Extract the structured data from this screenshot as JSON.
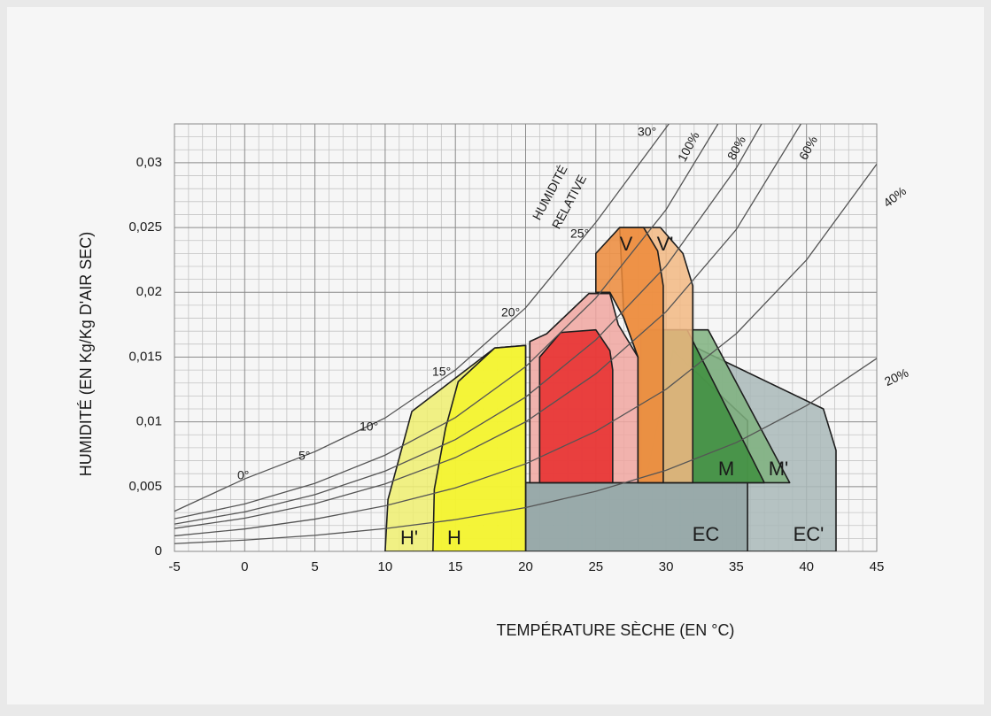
{
  "chart_data": {
    "type": "line",
    "x_label": "TEMPÉRATURE SÈCHE (EN °C)",
    "y_label": "HUMIDITÉ (EN Kg/Kg D'AIR SEC)",
    "annotation": [
      "HUMIDITÉ",
      "RELATIVE"
    ],
    "xlim": [
      -5,
      45
    ],
    "ylim": [
      0,
      0.033
    ],
    "xticks": [
      -5,
      0,
      5,
      10,
      15,
      20,
      25,
      30,
      35,
      40,
      45
    ],
    "yticks": [
      0,
      {
        "value": 0.005,
        "label": "0,005"
      },
      {
        "value": 0.01,
        "label": "0,01"
      },
      {
        "value": 0.015,
        "label": "0,015"
      },
      {
        "value": 0.02,
        "label": "0,02"
      },
      {
        "value": 0.025,
        "label": "0,025"
      },
      {
        "value": 0.03,
        "label": "0,03"
      }
    ],
    "grid": true,
    "curve_color": "#555555",
    "curves": [
      {
        "labels": [
          "0°",
          "5°",
          "10°",
          "15°",
          "20°",
          "25°",
          "30°"
        ],
        "x": [
          -5,
          0,
          5,
          10,
          15,
          20,
          25,
          30.2
        ],
        "values": [
          0.0031,
          0.0056,
          0.0077,
          0.0103,
          0.014,
          0.0188,
          0.0254,
          0.033
        ]
      },
      {
        "label": "100%",
        "x": [
          -5,
          0,
          5,
          10,
          15,
          20,
          25,
          30,
          33.7
        ],
        "values": [
          0.00252,
          0.00366,
          0.00525,
          0.00743,
          0.01033,
          0.01426,
          0.01956,
          0.02638,
          0.033
        ]
      },
      {
        "label": "80%",
        "x": [
          -5,
          0,
          5,
          10,
          15,
          20,
          25,
          30,
          35,
          36.8
        ],
        "values": [
          0.00211,
          0.00305,
          0.00438,
          0.0062,
          0.00863,
          0.01191,
          0.01633,
          0.02203,
          0.0296,
          0.033
        ]
      },
      {
        "label": "60%",
        "x": [
          -5,
          0,
          5,
          10,
          15,
          20,
          25,
          30,
          35,
          39.6
        ],
        "values": [
          0.00177,
          0.00256,
          0.00368,
          0.00521,
          0.00724,
          0.01,
          0.01371,
          0.0185,
          0.02485,
          0.033
        ]
      },
      {
        "label": "40%",
        "x": [
          -5,
          0,
          5,
          10,
          15,
          20,
          25,
          30,
          35,
          40,
          45
        ],
        "values": [
          0.0012,
          0.00173,
          0.00249,
          0.00352,
          0.0049,
          0.00676,
          0.00927,
          0.01251,
          0.01681,
          0.0225,
          0.0299
        ]
      },
      {
        "label": "20%",
        "x": [
          -5,
          0,
          5,
          10,
          15,
          20,
          25,
          30,
          35,
          40,
          45
        ],
        "values": [
          0.0006,
          0.00087,
          0.00124,
          0.00176,
          0.00245,
          0.00338,
          0.00464,
          0.00626,
          0.0084,
          0.01125,
          0.0149
        ]
      }
    ],
    "zones": [
      {
        "name": "EC'",
        "color": "#a9b9b9",
        "x": [
          20,
          42.1,
          42.1,
          41.2,
          32,
          29,
          20
        ],
        "values": [
          0,
          0,
          0.0078,
          0.011,
          0.0158,
          0.0053,
          0.0053
        ]
      },
      {
        "name": "EC",
        "color": "#94a6a6",
        "x": [
          20,
          35.8,
          35.8,
          30.5,
          28.5,
          20
        ],
        "values": [
          0,
          0,
          0.0101,
          0.0155,
          0.0053,
          0.0053
        ]
      },
      {
        "name": "H'",
        "color": "#eeee70",
        "x": [
          10,
          10.2,
          11.9,
          17.8,
          20,
          20
        ],
        "values": [
          0,
          0.004,
          0.0108,
          0.0157,
          0.0159,
          0
        ]
      },
      {
        "name": "H",
        "color": "#f5f52a",
        "x": [
          13.4,
          13.5,
          14.3,
          15.2,
          17.8,
          20,
          20
        ],
        "values": [
          0,
          0.0048,
          0.0095,
          0.0131,
          0.0157,
          0.0159,
          0
        ]
      },
      {
        "name": "M'",
        "color": "#7fb27f",
        "x": [
          28.2,
          38.8,
          33,
          28.2
        ],
        "values": [
          0.0053,
          0.0053,
          0.0171,
          0.0171
        ]
      },
      {
        "name": "M",
        "color": "#3f8f3f",
        "x": [
          28.2,
          37,
          31.5,
          28.2
        ],
        "values": [
          0.0053,
          0.0053,
          0.0171,
          0.0171
        ]
      },
      {
        "name": "V'",
        "color": "#f2b983",
        "x": [
          26.7,
          29.6,
          31.2,
          31.9,
          31.9,
          28,
          28,
          27
        ],
        "values": [
          0.025,
          0.025,
          0.023,
          0.0205,
          0.0053,
          0.0053,
          0.015,
          0.018
        ]
      },
      {
        "color": "#f0a6a0",
        "x": [
          20.3,
          20.3,
          21.5,
          24.5,
          26,
          26.6,
          28,
          28
        ],
        "values": [
          0.0053,
          0.0162,
          0.0168,
          0.0199,
          0.0199,
          0.0175,
          0.015,
          0.0053
        ]
      },
      {
        "name": "V",
        "color": "#ec8a3a",
        "x": [
          25,
          25,
          26.7,
          28.4,
          29.4,
          29.8,
          29.8,
          28,
          28,
          27,
          26
        ],
        "values": [
          0.02,
          0.023,
          0.025,
          0.025,
          0.0232,
          0.0205,
          0.0053,
          0.0053,
          0.015,
          0.018,
          0.02
        ]
      },
      {
        "color": "#e82a2a",
        "x": [
          21,
          21,
          22.5,
          25,
          26,
          26.2,
          26.2
        ],
        "values": [
          0.0053,
          0.015,
          0.0169,
          0.0171,
          0.0155,
          0.014,
          0.0053
        ]
      }
    ]
  }
}
